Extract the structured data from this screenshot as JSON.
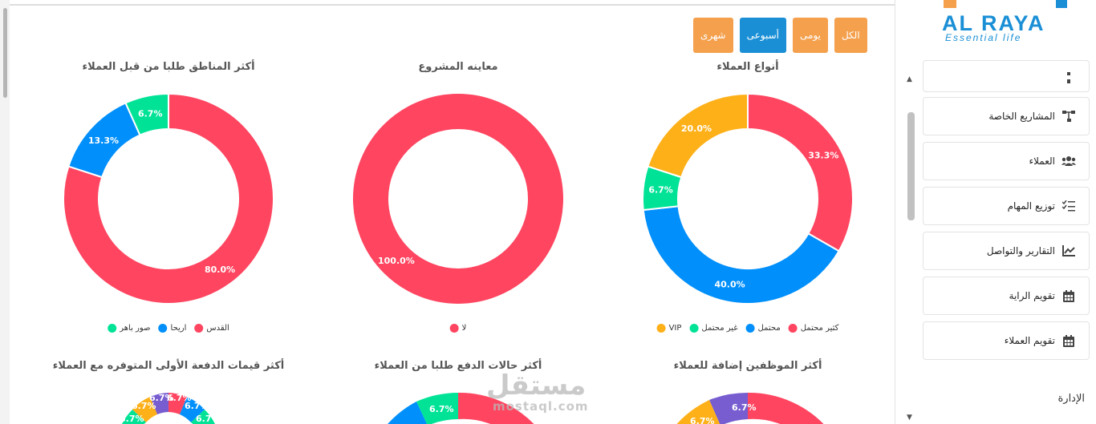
{
  "filters": [
    {
      "label": "الكل",
      "active": false
    },
    {
      "label": "يومى",
      "active": false
    },
    {
      "label": "أسبوعى",
      "active": true
    },
    {
      "label": "شهرى",
      "active": false
    }
  ],
  "colors": {
    "red": "#ff4560",
    "blue": "#008ffb",
    "green": "#00e396",
    "orange": "#feb019",
    "purple": "#775dd0",
    "accent": "#1a8fd6",
    "filter_button": "#f4a04d"
  },
  "chart_data": [
    {
      "type": "pie",
      "variant": "donut",
      "title": "أنواع العملاء",
      "categories": [
        "كثير محتمل",
        "محتمل",
        "غير محتمل",
        "VIP"
      ],
      "values": [
        33.3,
        40.0,
        6.7,
        20.0
      ],
      "labels": [
        "33.3%",
        "40.0%",
        "6.7%",
        "20.0%"
      ],
      "colors": [
        "#ff4560",
        "#008ffb",
        "#00e396",
        "#feb019"
      ],
      "legend_placement": "bottom"
    },
    {
      "type": "pie",
      "variant": "donut",
      "title": "معاينه المشروع",
      "categories": [
        "لا"
      ],
      "values": [
        100.0
      ],
      "labels": [
        "100.0%"
      ],
      "colors": [
        "#ff4560"
      ],
      "legend_placement": "bottom"
    },
    {
      "type": "pie",
      "variant": "donut",
      "title": "أكثر المناطق طلبا من قبل العملاء",
      "categories": [
        "القدس",
        "اريحا",
        "صور باهر"
      ],
      "values": [
        80.0,
        13.3,
        6.7
      ],
      "labels": [
        "80.0%",
        "13.3%",
        "6.7%"
      ],
      "colors": [
        "#ff4560",
        "#008ffb",
        "#00e396"
      ],
      "legend_placement": "bottom"
    },
    {
      "type": "pie",
      "variant": "donut",
      "partially_visible": true,
      "title": "أكثر الموظفين إضافة للعملاء",
      "visible_labels": [
        "6.7%",
        "6.7%"
      ]
    },
    {
      "type": "pie",
      "variant": "donut",
      "partially_visible": true,
      "title": "أكثر حالات الدفع طلبا من العملاء",
      "visible_labels": [
        "6.7%"
      ]
    },
    {
      "type": "pie",
      "variant": "donut",
      "partially_visible": true,
      "title": "أكثر قيمات الدفعة الأولى المتوفره مع العملاء",
      "visible_labels": [
        "6.7%",
        "6.7%",
        "6.7%",
        "6.7%",
        "6.7%",
        "6.7%"
      ]
    }
  ],
  "sidebar": {
    "logo": {
      "brand": "AL RAYA",
      "tagline": "Essential life"
    },
    "items": [
      {
        "label": "",
        "icon": "bar-icon"
      },
      {
        "label": "المشاريع الخاصة",
        "icon": "sitemap-icon"
      },
      {
        "label": "العملاء",
        "icon": "users-icon"
      },
      {
        "label": "توزيع المهام",
        "icon": "tasks-icon"
      },
      {
        "label": "التقارير والتواصل",
        "icon": "chart-line-icon"
      },
      {
        "label": "تقويم الراية",
        "icon": "calendar-icon"
      },
      {
        "label": "تقويم العملاء",
        "icon": "calendar-icon"
      }
    ],
    "section_label": "الإدارة"
  },
  "watermark": {
    "arabic": "مستقل",
    "latin": "mostaql.com"
  }
}
